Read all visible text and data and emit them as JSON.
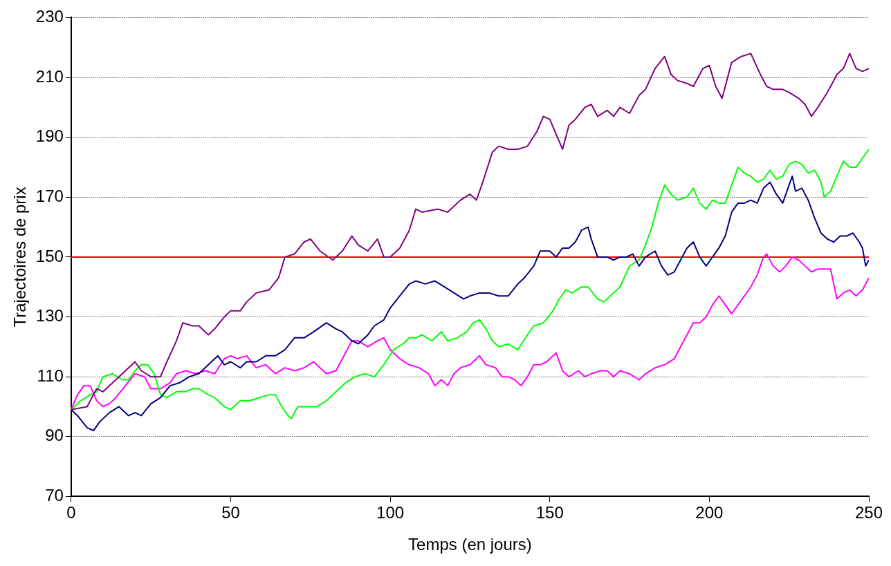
{
  "chart_data": {
    "type": "line",
    "xlabel": "Temps (en jours)",
    "ylabel": "Trajectoires de prix",
    "xlim": [
      0,
      250
    ],
    "xticks": [
      0,
      50,
      100,
      150,
      200,
      250
    ],
    "ylim": [
      70,
      230
    ],
    "yticks": [
      70,
      90,
      110,
      130,
      150,
      170,
      190,
      210,
      230
    ],
    "grid": "y",
    "legend": false,
    "marker": "none",
    "line_style": "solid",
    "ref_lines": [
      {
        "axis": "y",
        "value": 150,
        "color": "#ff0000"
      }
    ],
    "series": [
      {
        "color": "#800080",
        "x": [
          0,
          5,
          8,
          10,
          14,
          18,
          20,
          22,
          25,
          28,
          30,
          33,
          35,
          38,
          40,
          43,
          45,
          48,
          50,
          53,
          55,
          58,
          62,
          65,
          67,
          70,
          73,
          75,
          78,
          82,
          85,
          88,
          90,
          93,
          96,
          98,
          100,
          103,
          106,
          108,
          110,
          115,
          118,
          122,
          125,
          127,
          129,
          132,
          134,
          137,
          140,
          143,
          146,
          148,
          150,
          152,
          154,
          156,
          158,
          161,
          163,
          165,
          168,
          170,
          172,
          175,
          178,
          180,
          183,
          186,
          188,
          190,
          193,
          195,
          198,
          200,
          202,
          204,
          207,
          210,
          213,
          216,
          218,
          220,
          223,
          225,
          228,
          230,
          232,
          234,
          237,
          240,
          242,
          244,
          246,
          248,
          250
        ],
        "values": [
          99,
          100,
          106,
          105,
          109,
          113,
          115,
          112,
          110,
          110,
          115,
          122,
          128,
          127,
          127,
          124,
          126,
          130,
          132,
          132,
          135,
          138,
          139,
          143,
          150,
          151,
          155,
          156,
          152,
          149,
          152,
          157,
          154,
          152,
          156,
          150,
          150,
          153,
          159,
          166,
          165,
          166,
          165,
          169,
          171,
          169,
          175,
          185,
          187,
          186,
          186,
          187,
          192,
          197,
          196,
          191,
          186,
          194,
          196,
          200,
          201,
          197,
          199,
          197,
          200,
          198,
          204,
          206,
          213,
          217,
          211,
          209,
          208,
          207,
          213,
          214,
          207,
          203,
          215,
          217,
          218,
          211,
          207,
          206,
          206,
          205,
          203,
          201,
          197,
          200,
          205,
          211,
          213,
          218,
          213,
          212,
          213
        ]
      },
      {
        "color": "#000080",
        "x": [
          0,
          2,
          5,
          7,
          9,
          12,
          15,
          18,
          20,
          22,
          25,
          28,
          31,
          34,
          37,
          40,
          43,
          46,
          48,
          50,
          53,
          55,
          58,
          61,
          64,
          67,
          70,
          73,
          76,
          80,
          83,
          85,
          88,
          90,
          93,
          95,
          98,
          100,
          103,
          106,
          108,
          111,
          114,
          117,
          120,
          123,
          125,
          128,
          131,
          134,
          137,
          140,
          142,
          145,
          147,
          150,
          152,
          154,
          156,
          158,
          160,
          162,
          163,
          165,
          168,
          170,
          172,
          174,
          176,
          178,
          180,
          183,
          185,
          187,
          189,
          191,
          193,
          195,
          197,
          199,
          201,
          203,
          205,
          207,
          209,
          211,
          213,
          215,
          217,
          219,
          221,
          223,
          225,
          226,
          227,
          229,
          231,
          233,
          235,
          237,
          239,
          241,
          243,
          245,
          247,
          248,
          249,
          250
        ],
        "values": [
          99,
          97,
          93,
          92,
          95,
          98,
          100,
          97,
          98,
          97,
          101,
          103,
          107,
          108,
          110,
          111,
          114,
          117,
          114,
          115,
          113,
          115,
          115,
          117,
          117,
          119,
          123,
          123,
          125,
          128,
          126,
          125,
          122,
          121,
          124,
          127,
          129,
          133,
          137,
          141,
          142,
          141,
          142,
          140,
          138,
          136,
          137,
          138,
          138,
          137,
          137,
          141,
          143,
          147,
          152,
          152,
          150,
          153,
          153,
          155,
          159,
          160,
          156,
          150,
          150,
          149,
          150,
          150,
          151,
          147,
          150,
          152,
          147,
          144,
          145,
          149,
          153,
          155,
          150,
          147,
          150,
          153,
          157,
          165,
          168,
          168,
          169,
          168,
          173,
          175,
          171,
          168,
          174,
          177,
          172,
          173,
          169,
          163,
          158,
          156,
          155,
          157,
          157,
          158,
          155,
          153,
          147,
          149
        ]
      },
      {
        "color": "#00ff00",
        "x": [
          0,
          3,
          6,
          8,
          10,
          13,
          16,
          18,
          20,
          22,
          24,
          26,
          28,
          30,
          33,
          36,
          38,
          40,
          43,
          45,
          48,
          50,
          53,
          56,
          59,
          62,
          64,
          66,
          68,
          69,
          71,
          74,
          77,
          80,
          83,
          86,
          89,
          92,
          95,
          98,
          101,
          104,
          106,
          108,
          110,
          113,
          116,
          118,
          121,
          124,
          126,
          128,
          130,
          132,
          134,
          137,
          140,
          143,
          145,
          148,
          151,
          153,
          155,
          157,
          160,
          162,
          165,
          167,
          170,
          172,
          175,
          178,
          180,
          182,
          184,
          186,
          188,
          190,
          193,
          195,
          197,
          199,
          201,
          203,
          205,
          207,
          209,
          211,
          213,
          215,
          217,
          219,
          221,
          223,
          225,
          227,
          229,
          231,
          233,
          235,
          236,
          238,
          240,
          242,
          244,
          246,
          248,
          250
        ],
        "values": [
          99,
          102,
          104,
          105,
          110,
          111,
          109,
          109,
          112,
          114,
          114,
          111,
          104,
          103,
          105,
          105,
          106,
          106,
          104,
          103,
          100,
          99,
          102,
          102,
          103,
          104,
          104,
          100,
          97,
          96,
          100,
          100,
          100,
          102,
          105,
          108,
          110,
          111,
          110,
          114,
          119,
          121,
          123,
          123,
          124,
          122,
          125,
          122,
          123,
          125,
          128,
          129,
          126,
          122,
          120,
          121,
          119,
          124,
          127,
          128,
          132,
          136,
          139,
          138,
          140,
          140,
          136,
          135,
          138,
          140,
          147,
          149,
          154,
          160,
          168,
          174,
          171,
          169,
          170,
          173,
          168,
          166,
          169,
          168,
          168,
          174,
          180,
          178,
          177,
          175,
          176,
          179,
          176,
          177,
          181,
          182,
          181,
          178,
          179,
          175,
          170,
          172,
          177,
          182,
          180,
          180,
          183,
          186
        ]
      },
      {
        "color": "#ff00ff",
        "x": [
          0,
          2,
          4,
          6,
          8,
          10,
          12,
          14,
          17,
          20,
          23,
          25,
          28,
          31,
          33,
          36,
          39,
          42,
          45,
          48,
          50,
          52,
          55,
          58,
          61,
          64,
          67,
          70,
          73,
          76,
          78,
          80,
          83,
          86,
          88,
          90,
          93,
          96,
          98,
          100,
          103,
          106,
          109,
          112,
          114,
          116,
          118,
          120,
          122,
          125,
          128,
          130,
          133,
          135,
          137,
          139,
          141,
          143,
          145,
          147,
          149,
          152,
          154,
          156,
          159,
          161,
          163,
          166,
          168,
          170,
          172,
          175,
          178,
          180,
          183,
          186,
          189,
          191,
          193,
          195,
          197,
          199,
          201,
          203,
          205,
          207,
          209,
          211,
          213,
          215,
          217,
          218,
          220,
          222,
          224,
          226,
          228,
          230,
          232,
          234,
          236,
          238,
          239,
          240,
          242,
          244,
          246,
          248,
          250
        ],
        "values": [
          99,
          104,
          107,
          107,
          102,
          100,
          101,
          103,
          107,
          111,
          110,
          106,
          106,
          108,
          111,
          112,
          111,
          112,
          111,
          116,
          117,
          116,
          117,
          113,
          114,
          111,
          113,
          112,
          113,
          115,
          113,
          111,
          112,
          118,
          122,
          122,
          120,
          122,
          123,
          119,
          116,
          114,
          113,
          111,
          107,
          109,
          107,
          111,
          113,
          114,
          117,
          114,
          113,
          110,
          110,
          109,
          107,
          110,
          114,
          114,
          115,
          118,
          112,
          110,
          112,
          110,
          111,
          112,
          112,
          110,
          112,
          111,
          109,
          111,
          113,
          114,
          116,
          120,
          124,
          128,
          128,
          130,
          134,
          137,
          134,
          131,
          134,
          137,
          140,
          144,
          150,
          151,
          147,
          145,
          147,
          150,
          149,
          147,
          145,
          146,
          146,
          146,
          141,
          136,
          138,
          139,
          137,
          139,
          143
        ]
      }
    ]
  }
}
